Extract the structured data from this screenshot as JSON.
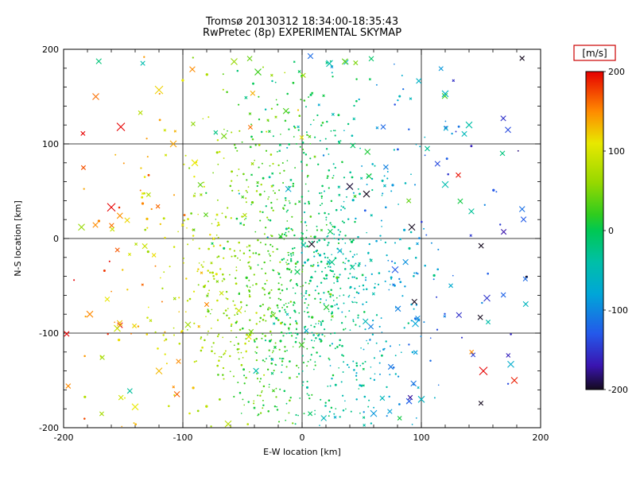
{
  "chart_data": {
    "type": "scatter",
    "title": "Tromsø 20130312 18:34:00-18:35:43",
    "subtitle": "RwPretec (8p) EXPERIMENTAL SKYMAP",
    "xlabel": "E-W location [km]",
    "ylabel": "N-S location [km]",
    "xlim": [
      -200,
      200
    ],
    "ylim": [
      -200,
      200
    ],
    "xticks": [
      -200,
      -100,
      0,
      100,
      200
    ],
    "yticks": [
      -200,
      -100,
      0,
      100,
      200
    ],
    "grid": true,
    "background": "#ffffff",
    "colorbar": {
      "label": "[m/s]",
      "label_box_color": "#cc0000",
      "min": -200,
      "max": 200,
      "ticks": [
        200,
        100,
        0,
        -100,
        -200
      ],
      "stops": [
        [
          200,
          "#e60000"
        ],
        [
          150,
          "#ff8a00"
        ],
        [
          110,
          "#e8e800"
        ],
        [
          60,
          "#96d800"
        ],
        [
          20,
          "#2fcc1e"
        ],
        [
          0,
          "#00c853"
        ],
        [
          -40,
          "#00bfa8"
        ],
        [
          -80,
          "#00a6d8"
        ],
        [
          -130,
          "#2458ea"
        ],
        [
          -170,
          "#3a14b0"
        ],
        [
          -200,
          "#140a1e"
        ]
      ]
    },
    "scatter": {
      "note": "Dense unlabeled Doppler point cloud; velocity ~ slope*x + noise (westward points positive/yellow-red, eastward negative/cyan-blue). clusters = [n, center, sigma] distributions; outliers = distinct marks as [x_km, y_km, velocity_mps, marker_halfsize_px].",
      "seed": 20130312,
      "clusters": [
        {
          "n": 850,
          "cx": -5,
          "cy": -45,
          "sx": 52,
          "sy": 82,
          "marker": "dot",
          "size": 1.1,
          "v_slope": -0.95,
          "v_noise": 22
        },
        {
          "n": 300,
          "cx": -12,
          "cy": -25,
          "sx": 90,
          "sy": 115,
          "marker": "mix",
          "size": 1.4,
          "v_slope": -0.9,
          "v_noise": 35
        },
        {
          "n": 200,
          "cx": -15,
          "cy": -120,
          "sx": 62,
          "sy": 55,
          "marker": "dot",
          "size": 1.1,
          "v_slope": -0.9,
          "v_noise": 25
        },
        {
          "n": 90,
          "cx": 5,
          "cy": 115,
          "sx": 60,
          "sy": 45,
          "marker": "mix",
          "size": 1.2,
          "v_slope": -0.95,
          "v_noise": 30
        },
        {
          "n": 110,
          "uniform": true,
          "marker": "x",
          "size": 3.0,
          "v_slope": -0.8,
          "v_noise": 70
        }
      ],
      "outliers": [
        [
          -152,
          118,
          200,
          5
        ],
        [
          -120,
          157,
          120,
          5
        ],
        [
          -160,
          33,
          200,
          5
        ],
        [
          -57,
          187,
          60,
          4
        ],
        [
          -37,
          176,
          25,
          4
        ],
        [
          23,
          185,
          -45,
          4
        ],
        [
          58,
          190,
          -10,
          3
        ],
        [
          120,
          153,
          -60,
          4
        ],
        [
          140,
          120,
          -40,
          4
        ],
        [
          155,
          -63,
          -150,
          4
        ],
        [
          152,
          -140,
          200,
          5
        ],
        [
          178,
          -150,
          190,
          4
        ],
        [
          175,
          -133,
          -70,
          4
        ],
        [
          78,
          -33,
          -130,
          4
        ],
        [
          95,
          -90,
          -80,
          4
        ],
        [
          -178,
          -80,
          150,
          4
        ],
        [
          -155,
          -95,
          90,
          4
        ],
        [
          -185,
          12,
          60,
          4
        ],
        [
          -140,
          -178,
          110,
          4
        ],
        [
          -62,
          -196,
          80,
          4
        ],
        [
          40,
          55,
          -195,
          4
        ],
        [
          54,
          47,
          -200,
          4
        ],
        [
          8,
          -6,
          -200,
          4
        ],
        [
          92,
          12,
          -200,
          4
        ],
        [
          120,
          57,
          -45,
          4
        ],
        [
          131,
          67,
          195,
          3
        ],
        [
          168,
          90,
          -20,
          3
        ],
        [
          -120,
          -140,
          130,
          4
        ],
        [
          100,
          -170,
          -60,
          4
        ],
        [
          60,
          -185,
          -90,
          4
        ],
        [
          -90,
          80,
          110,
          4
        ],
        [
          -173,
          150,
          160,
          4
        ],
        [
          68,
          118,
          -120,
          3
        ],
        [
          105,
          95,
          -30,
          3
        ],
        [
          -108,
          100,
          140,
          4
        ]
      ]
    }
  }
}
